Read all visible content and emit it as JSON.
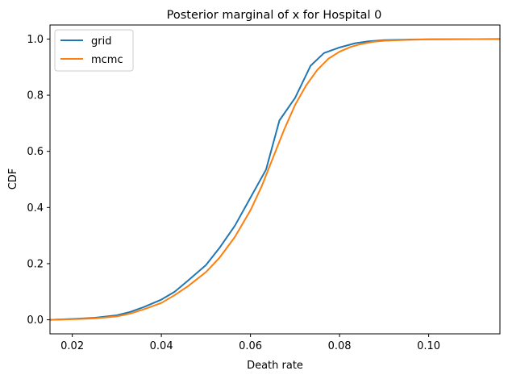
{
  "chart_data": {
    "type": "line",
    "title": "Posterior marginal of x for Hospital 0",
    "xlabel": "Death rate",
    "ylabel": "CDF",
    "xlim": [
      0.015,
      0.116
    ],
    "ylim": [
      -0.05,
      1.05
    ],
    "xticks": [
      0.02,
      0.04,
      0.06,
      0.08,
      0.1
    ],
    "xtick_labels": [
      "0.02",
      "0.04",
      "0.06",
      "0.08",
      "0.10"
    ],
    "yticks": [
      0.0,
      0.2,
      0.4,
      0.6,
      0.8,
      1.0
    ],
    "ytick_labels": [
      "0.0",
      "0.2",
      "0.4",
      "0.6",
      "0.8",
      "1.0"
    ],
    "grid": false,
    "legend_position": "top-left",
    "series": [
      {
        "name": "grid",
        "color": "#1f77b4",
        "x": [
          0.015,
          0.02,
          0.025,
          0.03,
          0.033,
          0.036,
          0.04,
          0.043,
          0.046,
          0.05,
          0.053,
          0.0565,
          0.06,
          0.0635,
          0.0665,
          0.07,
          0.0735,
          0.0765,
          0.08,
          0.0835,
          0.0865,
          0.09,
          0.095,
          0.1,
          0.116
        ],
        "y": [
          0.0,
          0.003,
          0.007,
          0.016,
          0.028,
          0.045,
          0.072,
          0.1,
          0.14,
          0.195,
          0.255,
          0.335,
          0.435,
          0.535,
          0.71,
          0.79,
          0.905,
          0.95,
          0.97,
          0.985,
          0.992,
          0.996,
          0.998,
          0.999,
          1.0
        ]
      },
      {
        "name": "mcmc",
        "color": "#ff7f0e",
        "x": [
          0.015,
          0.02,
          0.025,
          0.03,
          0.033,
          0.036,
          0.04,
          0.043,
          0.046,
          0.05,
          0.053,
          0.0565,
          0.06,
          0.0625,
          0.065,
          0.0675,
          0.07,
          0.0725,
          0.075,
          0.0775,
          0.08,
          0.0825,
          0.085,
          0.0875,
          0.09,
          0.095,
          0.1,
          0.116
        ],
        "y": [
          0.0,
          0.002,
          0.005,
          0.012,
          0.022,
          0.037,
          0.06,
          0.088,
          0.12,
          0.17,
          0.22,
          0.295,
          0.39,
          0.475,
          0.575,
          0.675,
          0.765,
          0.835,
          0.89,
          0.93,
          0.955,
          0.972,
          0.983,
          0.99,
          0.994,
          0.997,
          0.999,
          1.0
        ]
      }
    ]
  }
}
